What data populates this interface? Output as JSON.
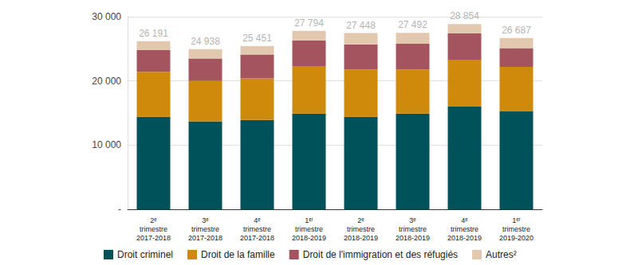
{
  "chart_data": {
    "type": "bar",
    "stacked": true,
    "grid": true,
    "legend": "bottom",
    "categories": [
      "2ᵉ trimestre 2017-2018",
      "3ᵉ trimestre 2017-2018",
      "4ᵉ trimestre 2017-2018",
      "1ᵉʳ trimestre 2018-2019",
      "2ᵉ trimestre 2018-2019",
      "3ᵉ trimestre 2018-2019",
      "4ᵉ trimestre 2018-2019",
      "1ᵉʳ trimestre 2019-2020"
    ],
    "series": [
      {
        "name": "Droit criminel",
        "color": "#00525a",
        "values": [
          14400,
          13700,
          13900,
          14900,
          14400,
          14900,
          16000,
          15300
        ]
      },
      {
        "name": "Droit de la famille",
        "color": "#d08a0b",
        "values": [
          7000,
          6300,
          6500,
          7400,
          7400,
          6900,
          7300,
          6900
        ]
      },
      {
        "name": "Droit de l'immigration et des réfugiés",
        "color": "#a3545e",
        "values": [
          3400,
          3500,
          3700,
          4000,
          3900,
          4000,
          4100,
          2900
        ]
      },
      {
        "name": "Autres²",
        "color": "#e3c8b0",
        "values": [
          1391,
          1438,
          1351,
          1494,
          1748,
          1692,
          1454,
          1587
        ]
      }
    ],
    "totals": [
      26191,
      24938,
      25451,
      27794,
      27448,
      27492,
      28854,
      26687
    ],
    "total_labels": [
      "26 191",
      "24 938",
      "25 451",
      "27 794",
      "27 448",
      "27 492",
      "28 854",
      "26 687"
    ],
    "ylim": [
      0,
      30000
    ],
    "yticks": [
      {
        "value": 0,
        "label": "-"
      },
      {
        "value": 10000,
        "label": "10 000"
      },
      {
        "value": 20000,
        "label": "20 000"
      },
      {
        "value": 30000,
        "label": "30 000"
      }
    ]
  }
}
